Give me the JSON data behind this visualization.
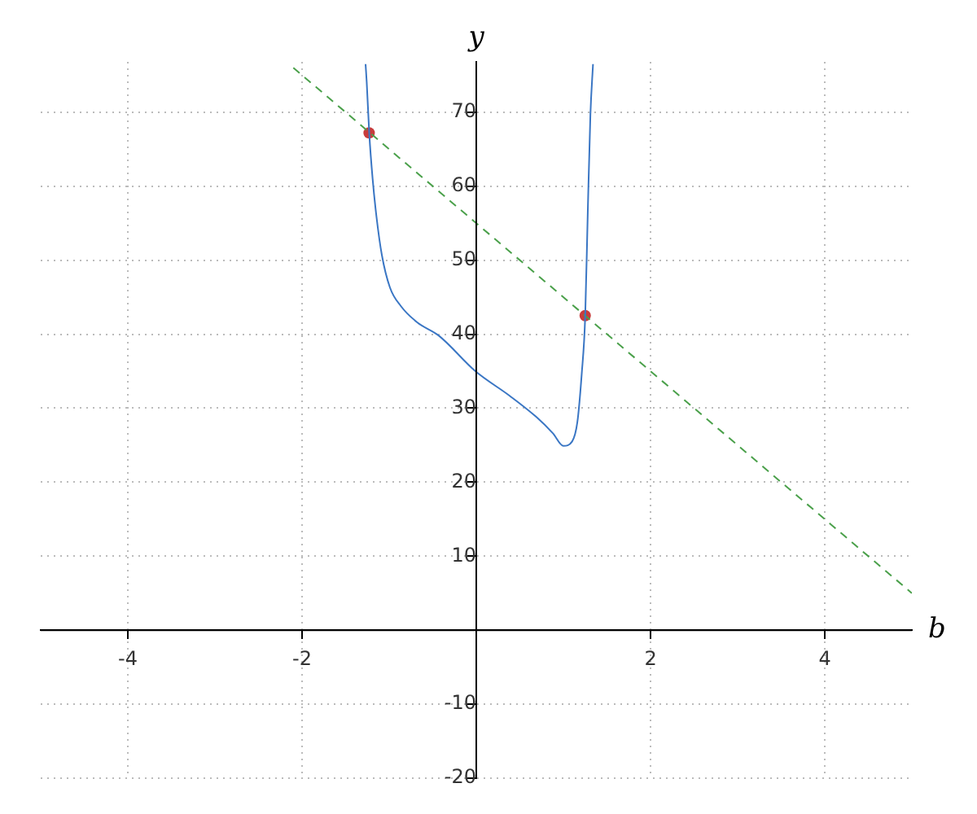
{
  "chart_data": {
    "type": "line",
    "xlabel": "b",
    "ylabel": "y",
    "xlim": [
      -5,
      5
    ],
    "ylim": [
      -20,
      76.8
    ],
    "xticks": [
      -4,
      -2,
      2,
      4
    ],
    "yticks": [
      -20,
      -10,
      10,
      20,
      30,
      40,
      50,
      60,
      70
    ],
    "grid": true,
    "legend": false,
    "series": [
      {
        "type": "line",
        "color": "#3a76c4",
        "marker": "none",
        "line_style": "solid",
        "x": [
          -1.271,
          -1.258,
          -1.228,
          -1.19,
          -1.146,
          -1.084,
          -0.991,
          -0.866,
          -0.679,
          -0.43,
          -0.01,
          0.38,
          0.69,
          0.88,
          1.0,
          1.1,
          1.16,
          1.21,
          1.25,
          1.28,
          1.31,
          1.34
        ],
        "values": [
          76.5,
          74.1,
          67.0,
          61.0,
          55.9,
          50.7,
          46.3,
          43.8,
          41.6,
          39.8,
          35.0,
          31.7,
          28.8,
          26.6,
          24.9,
          25.5,
          28.1,
          34.6,
          42.3,
          56.6,
          69.7,
          76.5
        ]
      },
      {
        "type": "line",
        "color": "#4aa04a",
        "marker": "none",
        "line_style": "dashed",
        "x": [
          -2.1,
          5
        ],
        "values": [
          76,
          5
        ]
      },
      {
        "type": "scatter",
        "color": "#c83c3c",
        "marker": "circle",
        "x": [
          -1.23,
          1.25
        ],
        "values": [
          67.2,
          42.5
        ]
      }
    ]
  }
}
